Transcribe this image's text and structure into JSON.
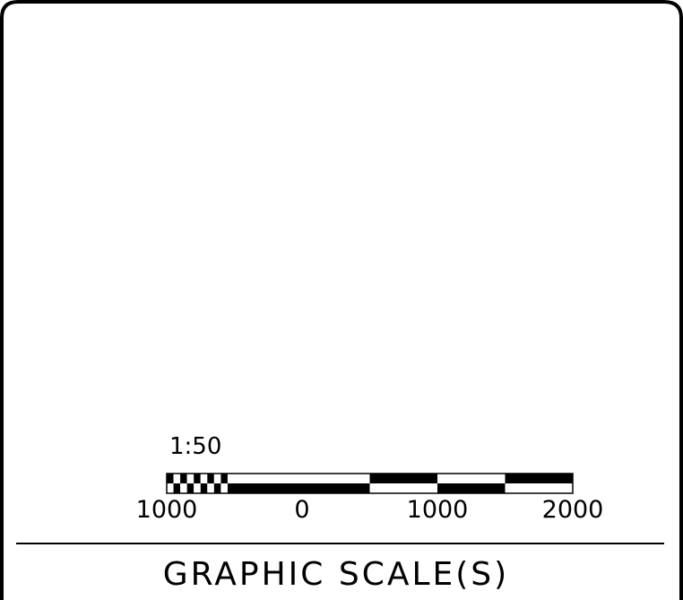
{
  "title": "GRAPHIC SCALE(S)",
  "scale": {
    "ratio": "1:50",
    "range": [
      -1000,
      2000
    ],
    "major_ticks": [
      {
        "value": -1000,
        "label": "1000"
      },
      {
        "value": 0,
        "label": "0"
      },
      {
        "value": 1000,
        "label": "1000"
      },
      {
        "value": 2000,
        "label": "2000"
      }
    ],
    "left_segment": {
      "from": -1000,
      "to": 0,
      "coarse_divisions": 2,
      "fine_divisions": 10
    },
    "right_divisions": 4
  },
  "colors": {
    "ink": "#000000",
    "paper": "#ffffff"
  }
}
